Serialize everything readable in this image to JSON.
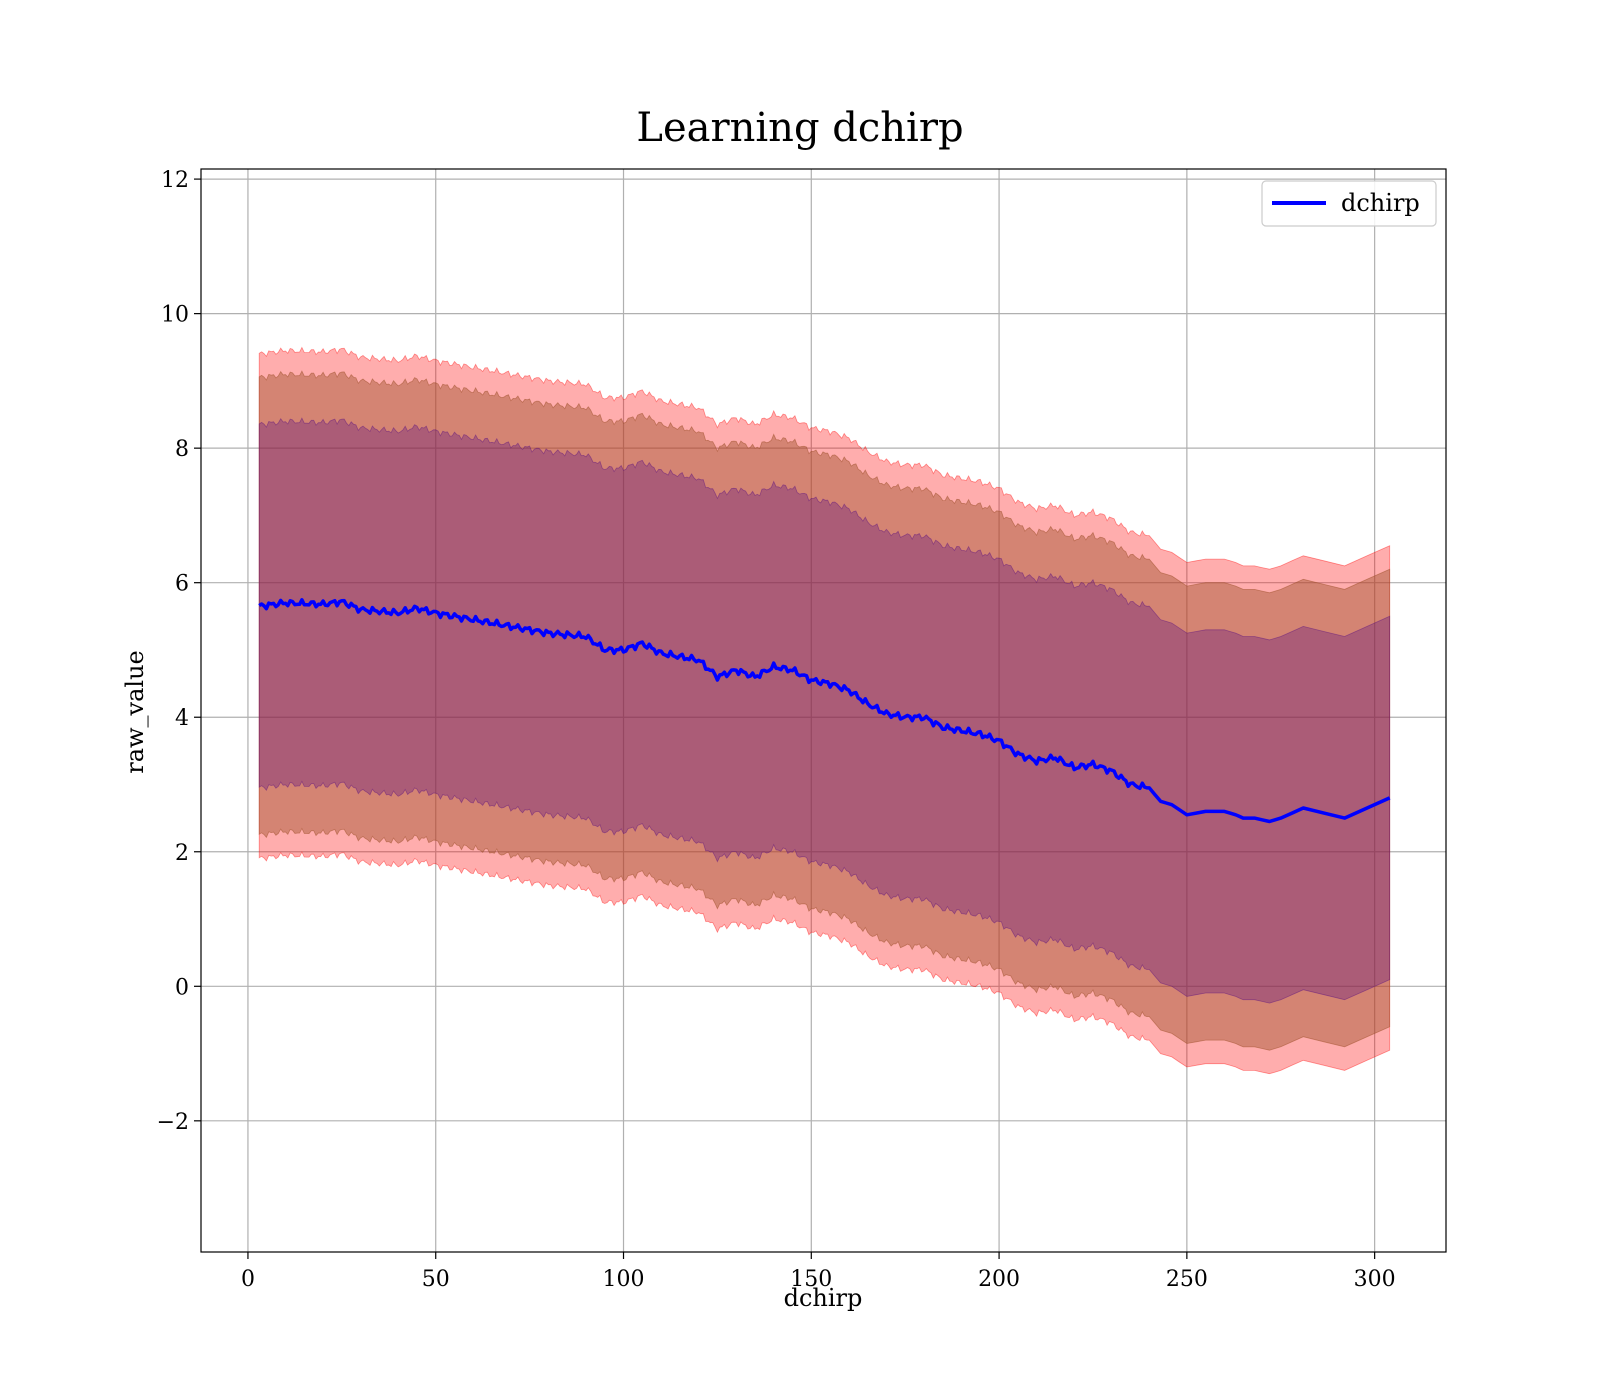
{
  "chart_data": {
    "type": "area",
    "title": "Learning dchirp",
    "xlabel": "dchirp",
    "ylabel": "raw_value",
    "xlim": [
      -12.5,
      319
    ],
    "ylim": [
      -3.95,
      12.15
    ],
    "xticks": [
      0,
      50,
      100,
      150,
      200,
      250,
      300
    ],
    "yticks": [
      -2,
      0,
      2,
      4,
      6,
      8,
      10,
      12
    ],
    "ytick_labels": [
      "−2",
      "0",
      "2",
      "4",
      "6",
      "8",
      "10",
      "12"
    ],
    "grid": true,
    "legend": {
      "position": "top-right",
      "entries": [
        "dchirp"
      ]
    },
    "series": [
      {
        "name": "dchirp",
        "color": "#0000ff",
        "x": [
          3,
          10,
          20,
          25,
          30,
          40,
          45,
          50,
          60,
          70,
          80,
          90,
          95,
          100,
          105,
          110,
          120,
          125,
          130,
          135,
          140,
          145,
          150,
          155,
          160,
          165,
          170,
          175,
          180,
          185,
          190,
          195,
          200,
          205,
          210,
          215,
          220,
          225,
          230,
          235,
          240,
          243,
          246,
          250,
          255,
          260,
          263,
          265,
          268,
          272,
          275,
          281,
          292,
          304
        ],
        "y": [
          5.65,
          5.7,
          5.68,
          5.72,
          5.6,
          5.55,
          5.62,
          5.55,
          5.45,
          5.35,
          5.25,
          5.2,
          5.0,
          5.0,
          5.1,
          4.95,
          4.85,
          4.6,
          4.7,
          4.6,
          4.75,
          4.7,
          4.55,
          4.5,
          4.4,
          4.2,
          4.05,
          4.0,
          4.0,
          3.85,
          3.8,
          3.75,
          3.65,
          3.45,
          3.35,
          3.4,
          3.25,
          3.3,
          3.2,
          3.0,
          2.95,
          2.75,
          2.7,
          2.55,
          2.6,
          2.6,
          2.55,
          2.5,
          2.5,
          2.45,
          2.5,
          2.65,
          2.5,
          2.8
        ]
      }
    ],
    "bands": [
      {
        "color": "#ff0000",
        "opacity": 0.32,
        "sigma": 3.75
      },
      {
        "color": "#a0522d",
        "opacity": 0.45,
        "sigma": 3.4
      },
      {
        "color": "#4b0082",
        "opacity": 0.3,
        "sigma": 2.7
      }
    ]
  }
}
